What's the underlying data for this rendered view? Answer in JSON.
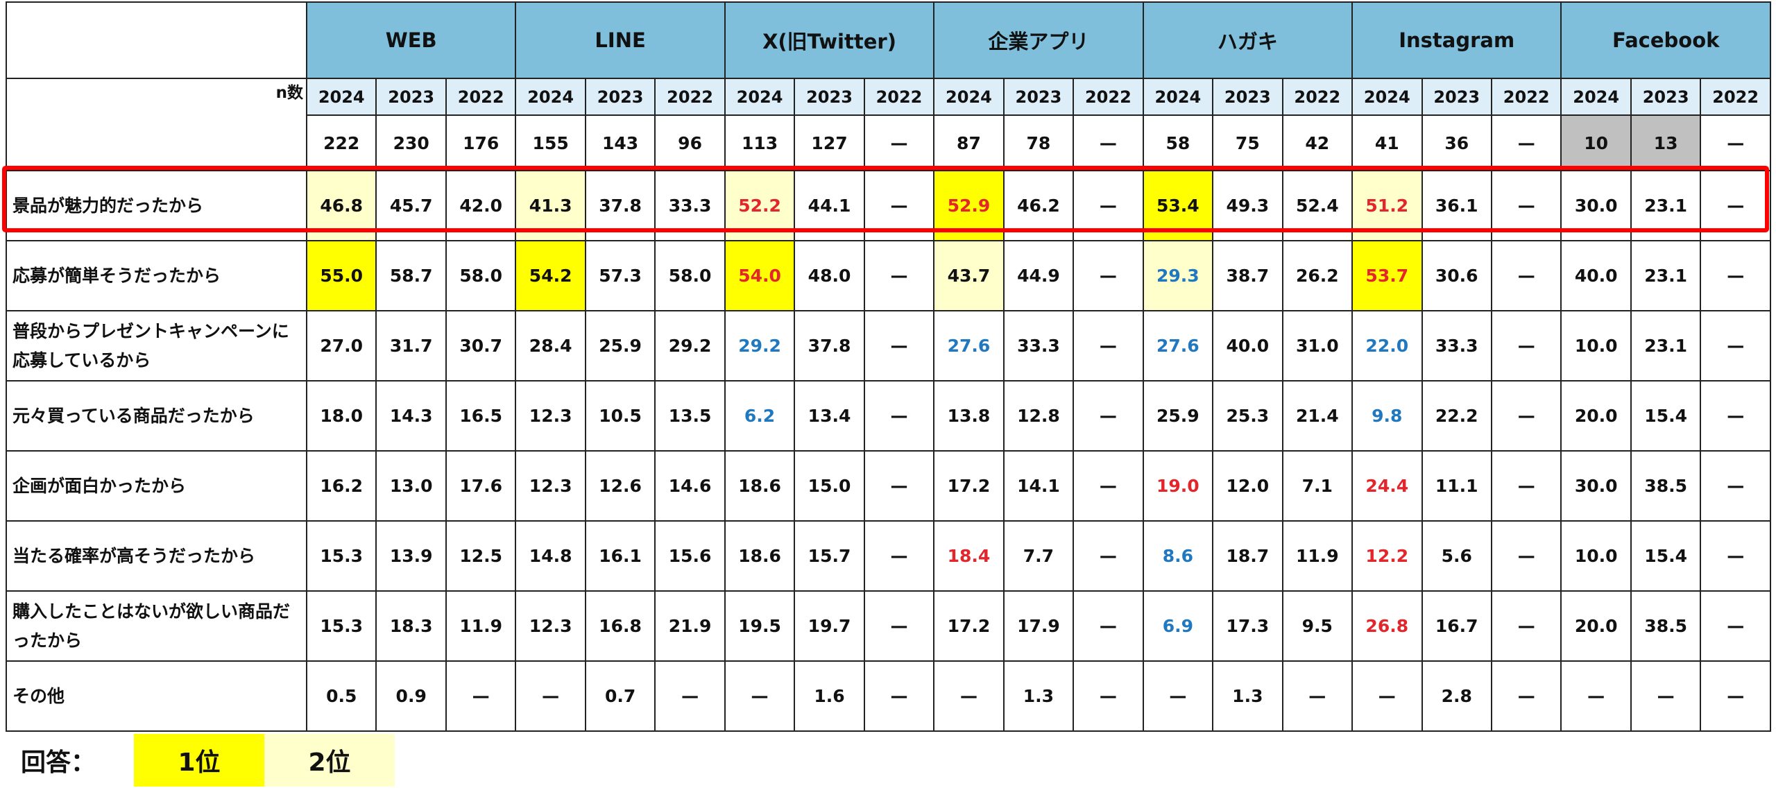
{
  "table": {
    "n_label": "n数",
    "channels": [
      "WEB",
      "LINE",
      "X(旧Twitter)",
      "企業アプリ",
      "ハガキ",
      "Instagram",
      "Facebook"
    ],
    "years": [
      "2024",
      "2023",
      "2022"
    ],
    "n_row": [
      {
        "v": "222"
      },
      {
        "v": "230"
      },
      {
        "v": "176"
      },
      {
        "v": "155"
      },
      {
        "v": "143"
      },
      {
        "v": "96"
      },
      {
        "v": "113"
      },
      {
        "v": "127"
      },
      {
        "v": "—"
      },
      {
        "v": "87"
      },
      {
        "v": "78"
      },
      {
        "v": "—"
      },
      {
        "v": "58"
      },
      {
        "v": "75"
      },
      {
        "v": "42"
      },
      {
        "v": "41"
      },
      {
        "v": "36"
      },
      {
        "v": "—"
      },
      {
        "v": "10",
        "bg": "gray"
      },
      {
        "v": "13",
        "bg": "gray"
      },
      {
        "v": "—"
      }
    ],
    "rows": [
      {
        "label": "景品が魅力的だったから",
        "highlighted": true,
        "cells": [
          {
            "v": "46.8",
            "bg": "h2"
          },
          {
            "v": "45.7"
          },
          {
            "v": "42.0"
          },
          {
            "v": "41.3",
            "bg": "h2"
          },
          {
            "v": "37.8"
          },
          {
            "v": "33.3"
          },
          {
            "v": "52.2",
            "bg": "h2",
            "c": "red"
          },
          {
            "v": "44.1"
          },
          {
            "v": "—"
          },
          {
            "v": "52.9",
            "bg": "h1",
            "c": "red"
          },
          {
            "v": "46.2"
          },
          {
            "v": "—"
          },
          {
            "v": "53.4",
            "bg": "h1"
          },
          {
            "v": "49.3"
          },
          {
            "v": "52.4"
          },
          {
            "v": "51.2",
            "bg": "h2",
            "c": "red"
          },
          {
            "v": "36.1"
          },
          {
            "v": "—"
          },
          {
            "v": "30.0"
          },
          {
            "v": "23.1"
          },
          {
            "v": "—"
          }
        ]
      },
      {
        "label": "応募が簡単そうだったから",
        "cells": [
          {
            "v": "55.0",
            "bg": "h1"
          },
          {
            "v": "58.7"
          },
          {
            "v": "58.0"
          },
          {
            "v": "54.2",
            "bg": "h1"
          },
          {
            "v": "57.3"
          },
          {
            "v": "58.0"
          },
          {
            "v": "54.0",
            "bg": "h1",
            "c": "red"
          },
          {
            "v": "48.0"
          },
          {
            "v": "—"
          },
          {
            "v": "43.7",
            "bg": "h2"
          },
          {
            "v": "44.9"
          },
          {
            "v": "—"
          },
          {
            "v": "29.3",
            "bg": "h2",
            "c": "blue"
          },
          {
            "v": "38.7"
          },
          {
            "v": "26.2"
          },
          {
            "v": "53.7",
            "bg": "h1",
            "c": "red"
          },
          {
            "v": "30.6"
          },
          {
            "v": "—"
          },
          {
            "v": "40.0"
          },
          {
            "v": "23.1"
          },
          {
            "v": "—"
          }
        ]
      },
      {
        "label": "普段からプレゼントキャンペーンに応募しているから",
        "cells": [
          {
            "v": "27.0"
          },
          {
            "v": "31.7"
          },
          {
            "v": "30.7"
          },
          {
            "v": "28.4"
          },
          {
            "v": "25.9"
          },
          {
            "v": "29.2"
          },
          {
            "v": "29.2",
            "c": "blue"
          },
          {
            "v": "37.8"
          },
          {
            "v": "—"
          },
          {
            "v": "27.6",
            "c": "blue"
          },
          {
            "v": "33.3"
          },
          {
            "v": "—"
          },
          {
            "v": "27.6",
            "c": "blue"
          },
          {
            "v": "40.0"
          },
          {
            "v": "31.0"
          },
          {
            "v": "22.0",
            "c": "blue"
          },
          {
            "v": "33.3"
          },
          {
            "v": "—"
          },
          {
            "v": "10.0"
          },
          {
            "v": "23.1"
          },
          {
            "v": "—"
          }
        ]
      },
      {
        "label": "元々買っている商品だったから",
        "cells": [
          {
            "v": "18.0"
          },
          {
            "v": "14.3"
          },
          {
            "v": "16.5"
          },
          {
            "v": "12.3"
          },
          {
            "v": "10.5"
          },
          {
            "v": "13.5"
          },
          {
            "v": "6.2",
            "c": "blue"
          },
          {
            "v": "13.4"
          },
          {
            "v": "—"
          },
          {
            "v": "13.8"
          },
          {
            "v": "12.8"
          },
          {
            "v": "—"
          },
          {
            "v": "25.9"
          },
          {
            "v": "25.3"
          },
          {
            "v": "21.4"
          },
          {
            "v": "9.8",
            "c": "blue"
          },
          {
            "v": "22.2"
          },
          {
            "v": "—"
          },
          {
            "v": "20.0"
          },
          {
            "v": "15.4"
          },
          {
            "v": "—"
          }
        ]
      },
      {
        "label": "企画が面白かったから",
        "cells": [
          {
            "v": "16.2"
          },
          {
            "v": "13.0"
          },
          {
            "v": "17.6"
          },
          {
            "v": "12.3"
          },
          {
            "v": "12.6"
          },
          {
            "v": "14.6"
          },
          {
            "v": "18.6"
          },
          {
            "v": "15.0"
          },
          {
            "v": "—"
          },
          {
            "v": "17.2"
          },
          {
            "v": "14.1"
          },
          {
            "v": "—"
          },
          {
            "v": "19.0",
            "c": "red"
          },
          {
            "v": "12.0"
          },
          {
            "v": "7.1"
          },
          {
            "v": "24.4",
            "c": "red"
          },
          {
            "v": "11.1"
          },
          {
            "v": "—"
          },
          {
            "v": "30.0"
          },
          {
            "v": "38.5"
          },
          {
            "v": "—"
          }
        ]
      },
      {
        "label": "当たる確率が高そうだったから",
        "cells": [
          {
            "v": "15.3"
          },
          {
            "v": "13.9"
          },
          {
            "v": "12.5"
          },
          {
            "v": "14.8"
          },
          {
            "v": "16.1"
          },
          {
            "v": "15.6"
          },
          {
            "v": "18.6"
          },
          {
            "v": "15.7"
          },
          {
            "v": "—"
          },
          {
            "v": "18.4",
            "c": "red"
          },
          {
            "v": "7.7"
          },
          {
            "v": "—"
          },
          {
            "v": "8.6",
            "c": "blue"
          },
          {
            "v": "18.7"
          },
          {
            "v": "11.9"
          },
          {
            "v": "12.2",
            "c": "red"
          },
          {
            "v": "5.6"
          },
          {
            "v": "—"
          },
          {
            "v": "10.0"
          },
          {
            "v": "15.4"
          },
          {
            "v": "—"
          }
        ]
      },
      {
        "label": "購入したことはないが欲しい商品だったから",
        "cells": [
          {
            "v": "15.3"
          },
          {
            "v": "18.3"
          },
          {
            "v": "11.9"
          },
          {
            "v": "12.3"
          },
          {
            "v": "16.8"
          },
          {
            "v": "21.9"
          },
          {
            "v": "19.5"
          },
          {
            "v": "19.7"
          },
          {
            "v": "—"
          },
          {
            "v": "17.2"
          },
          {
            "v": "17.9"
          },
          {
            "v": "—"
          },
          {
            "v": "6.9",
            "c": "blue"
          },
          {
            "v": "17.3"
          },
          {
            "v": "9.5"
          },
          {
            "v": "26.8",
            "c": "red"
          },
          {
            "v": "16.7"
          },
          {
            "v": "—"
          },
          {
            "v": "20.0"
          },
          {
            "v": "38.5"
          },
          {
            "v": "—"
          }
        ]
      },
      {
        "label": "その他",
        "cells": [
          {
            "v": "0.5"
          },
          {
            "v": "0.9"
          },
          {
            "v": "—"
          },
          {
            "v": "—"
          },
          {
            "v": "0.7"
          },
          {
            "v": "—"
          },
          {
            "v": "—"
          },
          {
            "v": "1.6"
          },
          {
            "v": "—"
          },
          {
            "v": "—"
          },
          {
            "v": "1.3"
          },
          {
            "v": "—"
          },
          {
            "v": "—"
          },
          {
            "v": "1.3"
          },
          {
            "v": "—"
          },
          {
            "v": "—"
          },
          {
            "v": "2.8"
          },
          {
            "v": "—"
          },
          {
            "v": "—"
          },
          {
            "v": "—"
          },
          {
            "v": "—"
          }
        ]
      }
    ]
  },
  "legend": {
    "label": "回答：",
    "first": "1位",
    "second": "2位"
  },
  "colors": {
    "header": "#7fbfdc",
    "year_header": "#ddeef8",
    "rank1": "#ffff00",
    "rank2": "#ffffcc",
    "low_n": "#c0c0c0",
    "red_text": "#e3262b",
    "blue_text": "#1f78c0",
    "highlight_border": "#ff0000"
  }
}
